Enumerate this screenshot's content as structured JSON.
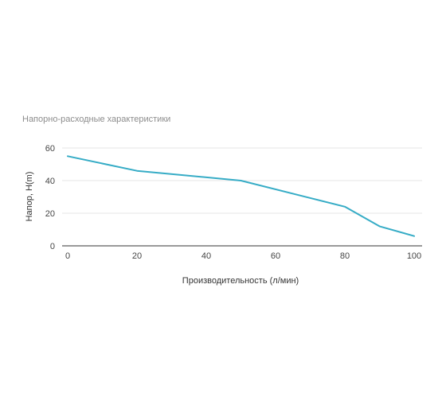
{
  "chart_data": {
    "type": "line",
    "title": "Напорно-расходные характеристики",
    "xlabel": "Производительность (л/мин)",
    "ylabel": "Напор, H(m)",
    "xlim": [
      0,
      100
    ],
    "ylim": [
      0,
      60
    ],
    "x_ticks": [
      "0",
      "20",
      "40",
      "60",
      "80",
      "100"
    ],
    "y_ticks": [
      "0",
      "20",
      "40",
      "60"
    ],
    "grid": true,
    "legend": "none",
    "series": [
      {
        "color": "#36acc6",
        "x": [
          0,
          20,
          50,
          80,
          90,
          100
        ],
        "y": [
          55,
          46,
          40,
          24,
          12,
          6
        ]
      }
    ]
  }
}
